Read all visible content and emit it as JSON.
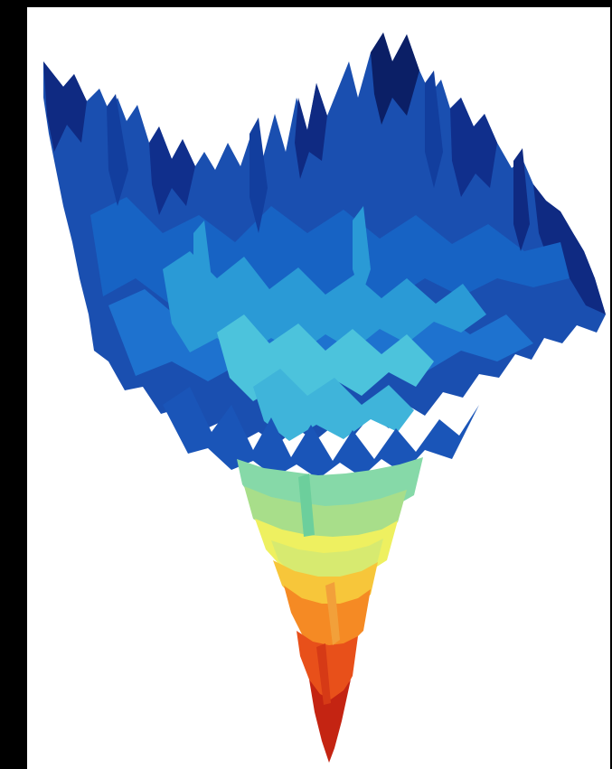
{
  "figure": {
    "subject": "3d-loss-landscape-surface",
    "background_color": "#000000",
    "canvas_color": "#ffffff",
    "colormap": [
      "#0b1f66",
      "#123e9e",
      "#1763c4",
      "#2a9ad6",
      "#4cc3dc",
      "#86d9a8",
      "#c3e37a",
      "#eef060",
      "#f7c63a",
      "#f58a24",
      "#e8501a",
      "#c42412"
    ]
  }
}
